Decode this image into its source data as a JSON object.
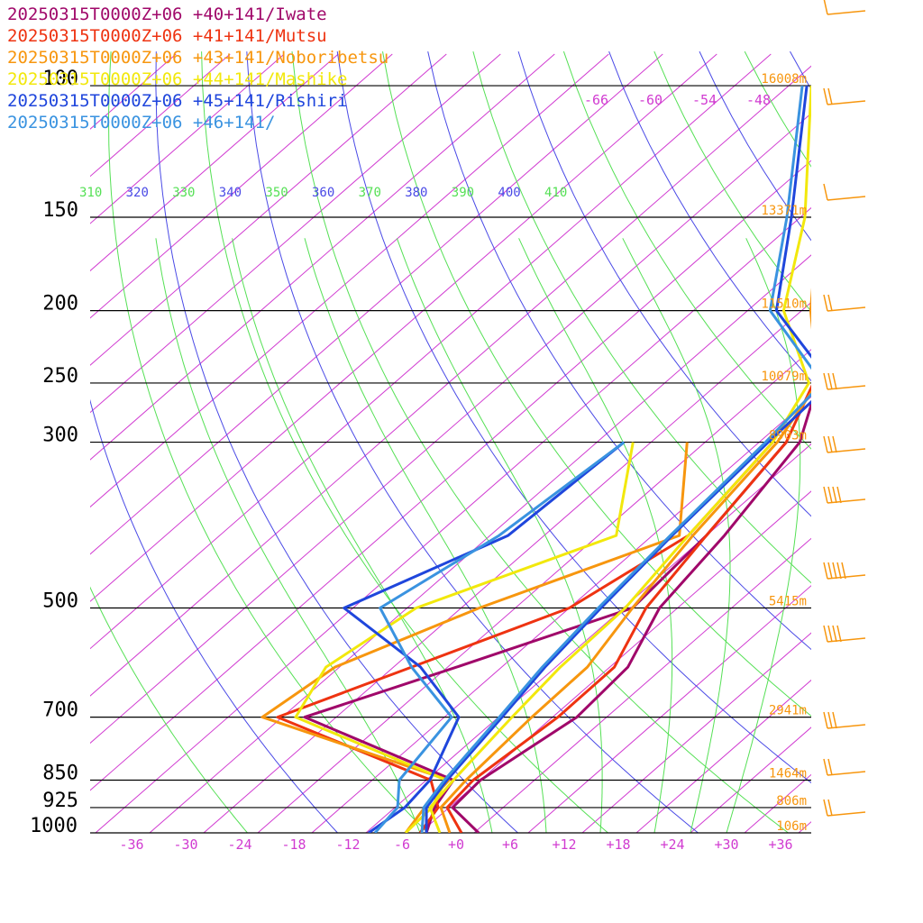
{
  "chart_data": {
    "type": "line",
    "chart_kind": "skew-T log-P sounding",
    "legend": [
      {
        "label": "20250315T0000Z+06 +40+141/Iwate",
        "color": "#a0086a"
      },
      {
        "label": "20250315T0000Z+06 +41+141/Mutsu",
        "color": "#ee3311"
      },
      {
        "label": "20250315T0000Z+06 +43+141/Noboribetsu",
        "color": "#f7960e"
      },
      {
        "label": "20250315T0000Z+06 +44+141/Mashike",
        "color": "#f2e80c"
      },
      {
        "label": "20250315T0000Z+06 +45+141/Rishiri",
        "color": "#1f46dc"
      },
      {
        "label": "20250315T0000Z+06 +46+141/",
        "color": "#3a93e0"
      }
    ],
    "pressure_levels": [
      100,
      150,
      200,
      250,
      300,
      500,
      700,
      850,
      925,
      1000
    ],
    "pressure_labels": [
      "100",
      "150",
      "200",
      "250",
      "300",
      "500",
      "700",
      "850",
      "925",
      "1000"
    ],
    "height_labels": [
      {
        "p": 100,
        "text": "16008m"
      },
      {
        "p": 150,
        "text": "13371m"
      },
      {
        "p": 200,
        "text": "11510m"
      },
      {
        "p": 250,
        "text": "10079m"
      },
      {
        "p": 300,
        "text": "8903m"
      },
      {
        "p": 500,
        "text": "5415m"
      },
      {
        "p": 700,
        "text": "2941m"
      },
      {
        "p": 850,
        "text": "1464m"
      },
      {
        "p": 925,
        "text": "806m"
      },
      {
        "p": 1000,
        "text": "106m"
      }
    ],
    "x_ticks": [
      -36,
      -30,
      -24,
      -18,
      -12,
      -6,
      0,
      6,
      12,
      18,
      24,
      30,
      36
    ],
    "x_tick_labels": [
      "-36",
      "-30",
      "-24",
      "-18",
      "-12",
      "-6",
      "+0",
      "+6",
      "+12",
      "+18",
      "+24",
      "+30",
      "+36"
    ],
    "theta_labels": [
      "310",
      "320",
      "330",
      "340",
      "350",
      "360",
      "370",
      "380",
      "390",
      "400",
      "410"
    ],
    "top_temp_labels": [
      "-66",
      "-60",
      "-54",
      "-48"
    ],
    "series": [
      {
        "name": "20250315T0000Z+06 +40+141/Iwate",
        "color": "#a0086a",
        "temperature": [
          [
            1000,
            2.5
          ],
          [
            925,
            -3.6
          ],
          [
            850,
            -4.0
          ],
          [
            700,
            -1.3
          ],
          [
            600,
            -2.0
          ],
          [
            500,
            -6.0
          ],
          [
            400,
            -8.0
          ],
          [
            300,
            -11.5
          ],
          [
            250,
            -17.0
          ],
          [
            200,
            -23.5
          ],
          [
            150,
            -37.8
          ],
          [
            100,
            -53.5
          ]
        ],
        "dewpoint": [
          [
            1000,
            -3.3
          ],
          [
            925,
            -5.6
          ],
          [
            850,
            -7.0
          ],
          [
            700,
            -31.5
          ],
          [
            600,
            -21.0
          ],
          [
            500,
            -9.0
          ],
          [
            400,
            -10.0
          ],
          [
            300,
            -13.0
          ]
        ]
      },
      {
        "name": "20250315T0000Z+06 +41+141/Mutsu",
        "color": "#ee3311",
        "temperature": [
          [
            1000,
            0.6
          ],
          [
            925,
            -4.2
          ],
          [
            850,
            -4.8
          ],
          [
            700,
            -3.4
          ],
          [
            600,
            -3.5
          ],
          [
            500,
            -7.5
          ],
          [
            400,
            -10.0
          ],
          [
            300,
            -13.0
          ],
          [
            250,
            -17.5
          ],
          [
            200,
            -25.0
          ],
          [
            150,
            -37.0
          ],
          [
            100,
            -54.0
          ]
        ],
        "dewpoint": [
          [
            1000,
            -4.0
          ],
          [
            925,
            -5.2
          ],
          [
            850,
            -9.5
          ],
          [
            700,
            -34.5
          ],
          [
            600,
            -26.0
          ],
          [
            500,
            -16.0
          ],
          [
            400,
            -12.0
          ],
          [
            300,
            -14.5
          ]
        ]
      },
      {
        "name": "20250315T0000Z+06 +43+141/Noboribetsu",
        "color": "#f7960e",
        "temperature": [
          [
            1000,
            -0.7
          ],
          [
            925,
            -4.9
          ],
          [
            850,
            -5.6
          ],
          [
            700,
            -6.3
          ],
          [
            600,
            -6.5
          ],
          [
            500,
            -9.0
          ],
          [
            400,
            -11.5
          ],
          [
            300,
            -14.0
          ],
          [
            250,
            -17.0
          ],
          [
            200,
            -27.0
          ],
          [
            150,
            -38.0
          ],
          [
            100,
            -55.0
          ]
        ],
        "dewpoint": [
          [
            1000,
            -5.6
          ],
          [
            925,
            -6.7
          ],
          [
            850,
            -7.5
          ],
          [
            700,
            -36.2
          ],
          [
            600,
            -34.5
          ],
          [
            500,
            -26.0
          ],
          [
            400,
            -13.0
          ],
          [
            300,
            -24.0
          ]
        ]
      },
      {
        "name": "20250315T0000Z+06 +44+141/Mashike",
        "color": "#f2e80c",
        "temperature": [
          [
            1000,
            -1.8
          ],
          [
            925,
            -6.1
          ],
          [
            850,
            -7.0
          ],
          [
            700,
            -8.5
          ],
          [
            600,
            -9.5
          ],
          [
            500,
            -9.8
          ],
          [
            400,
            -12.0
          ],
          [
            300,
            -14.5
          ],
          [
            250,
            -18.0
          ],
          [
            200,
            -30.0
          ],
          [
            150,
            -39.5
          ],
          [
            100,
            -55.5
          ]
        ],
        "dewpoint": [
          [
            1000,
            -5.6
          ],
          [
            925,
            -5.9
          ],
          [
            850,
            -7.8
          ],
          [
            700,
            -32.5
          ],
          [
            600,
            -35.5
          ],
          [
            500,
            -33.0
          ],
          [
            400,
            -20.0
          ],
          [
            300,
            -30.0
          ]
        ]
      },
      {
        "name": "20250315T0000Z+06 +45+141/Rishiri",
        "color": "#1f46dc",
        "temperature": [
          [
            1000,
            -3.3
          ],
          [
            925,
            -6.5
          ],
          [
            850,
            -7.7
          ],
          [
            700,
            -9.6
          ],
          [
            600,
            -11.2
          ],
          [
            500,
            -12.5
          ],
          [
            400,
            -13.8
          ],
          [
            300,
            -15.0
          ],
          [
            250,
            -15.5
          ],
          [
            200,
            -30.8
          ],
          [
            150,
            -41.0
          ],
          [
            100,
            -56.0
          ]
        ],
        "dewpoint": [
          [
            1000,
            -9.7
          ],
          [
            925,
            -8.9
          ],
          [
            850,
            -9.6
          ],
          [
            700,
            -14.4
          ],
          [
            600,
            -25.0
          ],
          [
            500,
            -41.0
          ],
          [
            400,
            -32.0
          ],
          [
            300,
            -31.0
          ]
        ]
      },
      {
        "name": "20250315T0000Z+06 +46+141/",
        "color": "#3a93e0",
        "temperature": [
          [
            1000,
            -3.8
          ],
          [
            925,
            -6.8
          ],
          [
            850,
            -8.0
          ],
          [
            700,
            -9.9
          ],
          [
            600,
            -11.5
          ],
          [
            500,
            -12.8
          ],
          [
            400,
            -14.0
          ],
          [
            300,
            -15.3
          ],
          [
            250,
            -16.5
          ],
          [
            200,
            -31.5
          ],
          [
            150,
            -41.5
          ],
          [
            100,
            -56.5
          ]
        ],
        "dewpoint": [
          [
            1000,
            -9.0
          ],
          [
            925,
            -9.7
          ],
          [
            850,
            -13.0
          ],
          [
            700,
            -15.2
          ],
          [
            600,
            -26.0
          ],
          [
            500,
            -37.0
          ],
          [
            400,
            -33.0
          ],
          [
            300,
            -31.0
          ]
        ]
      }
    ],
    "wind_barbs_color": "#f7960e",
    "grid": true
  }
}
